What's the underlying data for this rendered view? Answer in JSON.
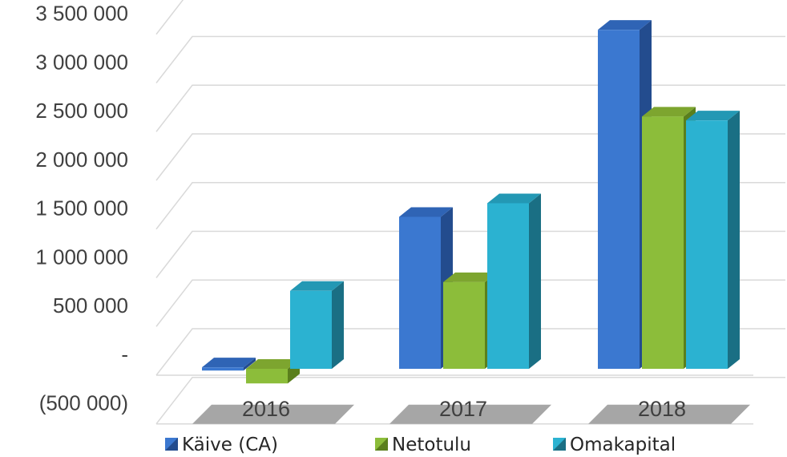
{
  "chart_data": {
    "type": "bar",
    "style": "3d-clustered-column",
    "categories": [
      "2016",
      "2017",
      "2018"
    ],
    "series": [
      {
        "name": "Käive (CA)",
        "values": [
          15000,
          1560000,
          3480000
        ],
        "color": "#3B78D0",
        "side_color": "#234C8E",
        "top_color": "#2F64B5"
      },
      {
        "name": "Netotulu",
        "values": [
          -150000,
          890000,
          2590000
        ],
        "color": "#8CBD3A",
        "side_color": "#5A7F1C",
        "top_color": "#7DA52F"
      },
      {
        "name": "Omakapital",
        "values": [
          800000,
          1700000,
          2550000
        ],
        "color": "#2BB2D1",
        "side_color": "#1A6F84",
        "top_color": "#2398B4"
      }
    ],
    "y_ticks": [
      "(500 000)",
      "-",
      "500 000",
      "1 000 000",
      "1 500 000",
      "2 000 000",
      "2 500 000",
      "3 000 000",
      "3 500 000"
    ],
    "y_tick_values": [
      -500000,
      0,
      500000,
      1000000,
      1500000,
      2000000,
      2500000,
      3000000,
      3500000
    ],
    "ylim": [
      -500000,
      3500000
    ],
    "grid": true,
    "legend_position": "bottom",
    "title": "",
    "xlabel": "",
    "ylabel": ""
  }
}
